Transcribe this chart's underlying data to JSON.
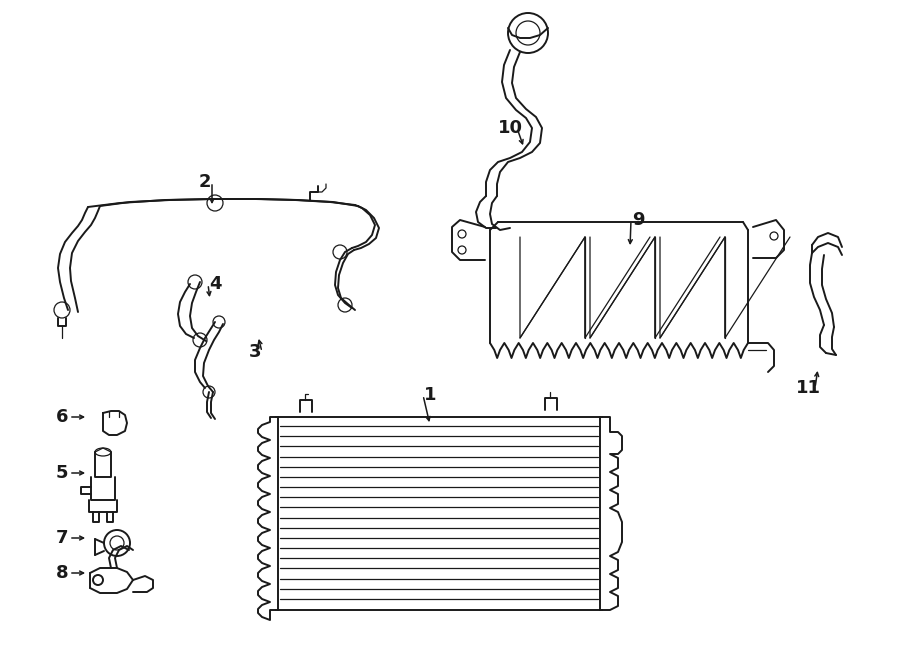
{
  "bg_color": "#ffffff",
  "line_color": "#1a1a1a",
  "lw": 1.4,
  "tlw": 0.9,
  "label_fs": 13
}
